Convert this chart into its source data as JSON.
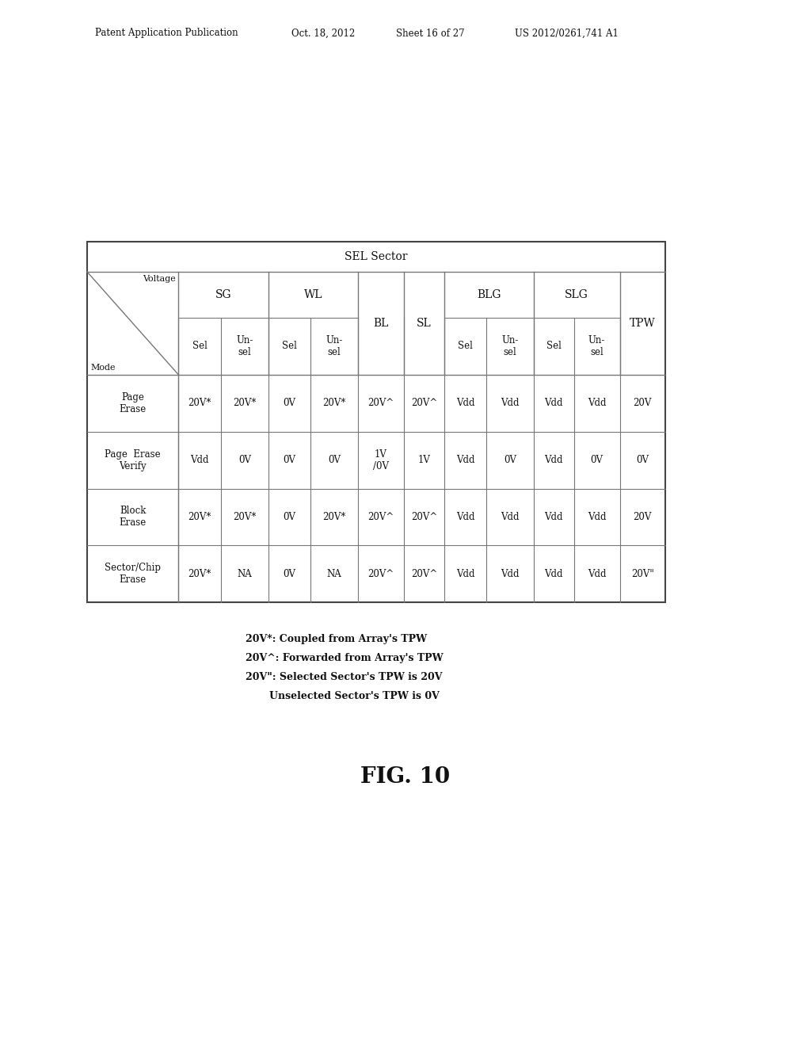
{
  "header_left": "Patent Application Publication",
  "header_date": "Oct. 18, 2012",
  "header_sheet": "Sheet 16 of 27",
  "header_patent": "US 2012/0261,741 A1",
  "fig_label": "FIG. 10",
  "table_title": "SEL Sector",
  "row_labels": [
    "Page\nErase",
    "Page  Erase\nVerify",
    "Block\nErase",
    "Sector/Chip\nErase"
  ],
  "data": [
    [
      "20V*",
      "20V*",
      "0V",
      "20V*",
      "20V^",
      "20V^",
      "Vdd",
      "Vdd",
      "Vdd",
      "Vdd",
      "20V"
    ],
    [
      "Vdd",
      "0V",
      "0V",
      "0V",
      "1V\n/0V",
      "1V",
      "Vdd",
      "0V",
      "Vdd",
      "0V",
      "0V"
    ],
    [
      "20V*",
      "20V*",
      "0V",
      "20V*",
      "20V^",
      "20V^",
      "Vdd",
      "Vdd",
      "Vdd",
      "Vdd",
      "20V"
    ],
    [
      "20V*",
      "NA",
      "0V",
      "NA",
      "20V^",
      "20V^",
      "Vdd",
      "Vdd",
      "Vdd",
      "Vdd",
      "20V\""
    ]
  ],
  "notes": [
    "20V*: Coupled from Array's TPW",
    "20V^: Forwarded from Array's TPW",
    "20V\": Selected Sector's TPW is 20V",
    "Unselected Sector's TPW is 0V"
  ],
  "bg_color": "#ffffff",
  "text_color": "#111111",
  "line_color": "#777777"
}
